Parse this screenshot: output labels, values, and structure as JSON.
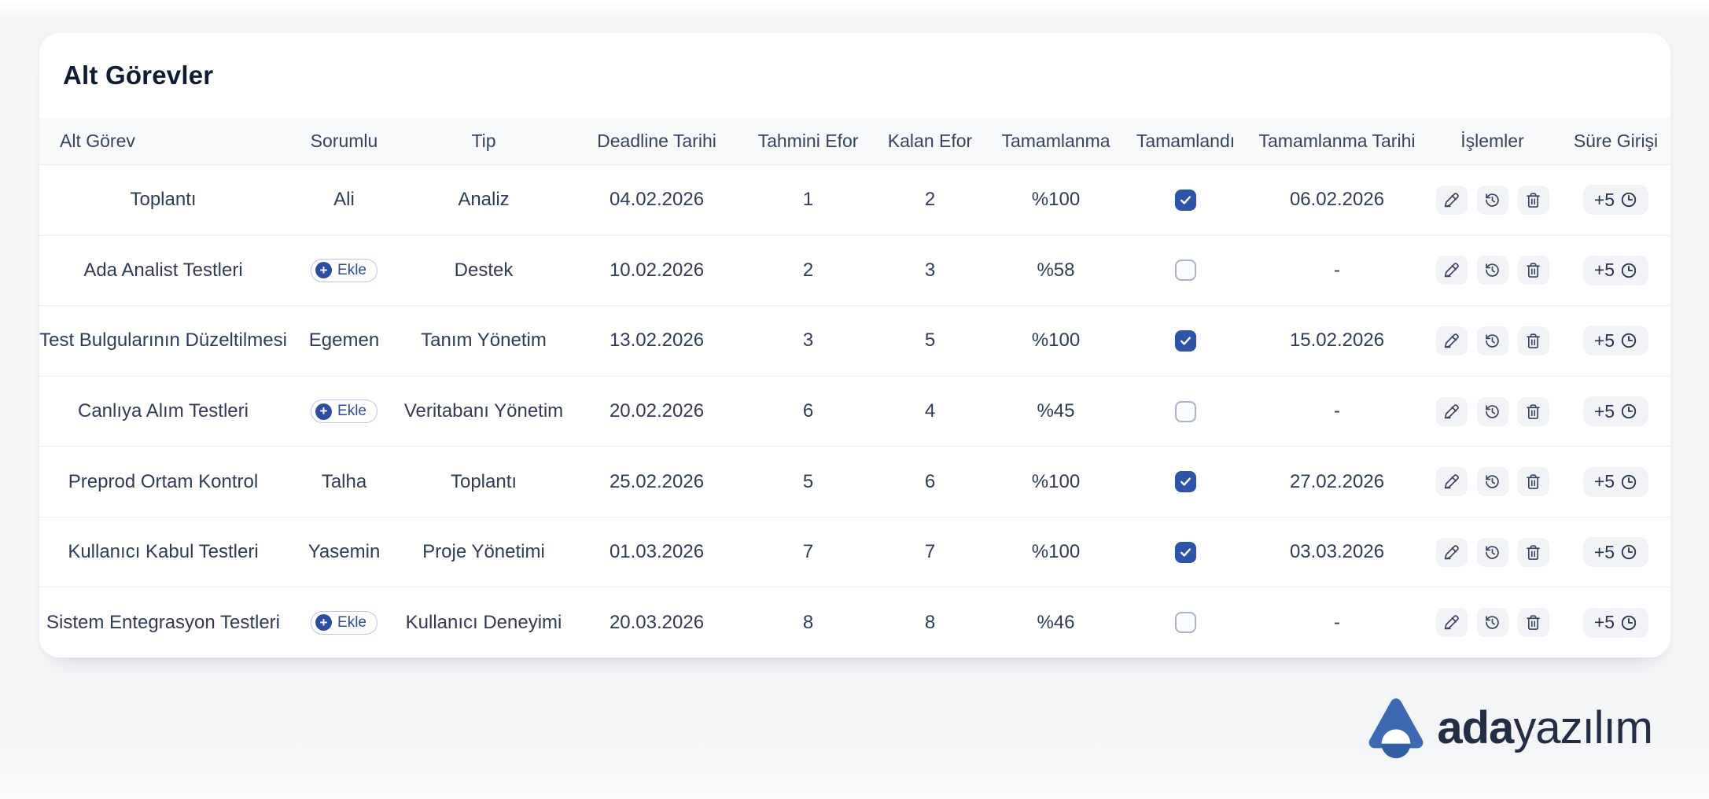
{
  "page": {
    "title": "Alt Görevler"
  },
  "table": {
    "columns": [
      {
        "key": "alt_gorev",
        "label": "Alt Görev"
      },
      {
        "key": "sorumlu",
        "label": "Sorumlu"
      },
      {
        "key": "tip",
        "label": "Tip"
      },
      {
        "key": "deadline",
        "label": "Deadline Tarihi"
      },
      {
        "key": "tahmini",
        "label": "Tahmini Efor"
      },
      {
        "key": "kalan",
        "label": "Kalan Efor"
      },
      {
        "key": "tamamlanma",
        "label": "Tamamlanma"
      },
      {
        "key": "tamamlandi",
        "label": "Tamamlandı"
      },
      {
        "key": "tarih",
        "label": "Tamamlanma Tarihi"
      },
      {
        "key": "islemler",
        "label": "İşlemler"
      },
      {
        "key": "sure",
        "label": "Süre Girişi"
      }
    ],
    "ekle_label": "Ekle",
    "time_entry_label": "+5",
    "rows": [
      {
        "alt_gorev": "Toplantı",
        "sorumlu": "Ali",
        "ekle": false,
        "tip": "Analiz",
        "deadline": "04.02.2026",
        "tahmini": "1",
        "kalan": "2",
        "tamamlanma": "%100",
        "tamamlandi": true,
        "tarih": "06.02.2026"
      },
      {
        "alt_gorev": "Ada Analist Testleri",
        "sorumlu": "",
        "ekle": true,
        "tip": "Destek",
        "deadline": "10.02.2026",
        "tahmini": "2",
        "kalan": "3",
        "tamamlanma": "%58",
        "tamamlandi": false,
        "tarih": "-"
      },
      {
        "alt_gorev": "Test Bulgularının Düzeltilmesi",
        "sorumlu": "Egemen",
        "ekle": false,
        "tip": "Tanım Yönetim",
        "deadline": "13.02.2026",
        "tahmini": "3",
        "kalan": "5",
        "tamamlanma": "%100",
        "tamamlandi": true,
        "tarih": "15.02.2026"
      },
      {
        "alt_gorev": "Canlıya Alım Testleri",
        "sorumlu": "",
        "ekle": true,
        "tip": "Veritabanı Yönetim",
        "deadline": "20.02.2026",
        "tahmini": "6",
        "kalan": "4",
        "tamamlanma": "%45",
        "tamamlandi": false,
        "tarih": "-"
      },
      {
        "alt_gorev": "Preprod Ortam Kontrol",
        "sorumlu": "Talha",
        "ekle": false,
        "tip": "Toplantı",
        "deadline": "25.02.2026",
        "tahmini": "5",
        "kalan": "6",
        "tamamlanma": "%100",
        "tamamlandi": true,
        "tarih": "27.02.2026"
      },
      {
        "alt_gorev": "Kullanıcı Kabul Testleri",
        "sorumlu": "Yasemin",
        "ekle": false,
        "tip": "Proje Yönetimi",
        "deadline": "01.03.2026",
        "tahmini": "7",
        "kalan": "7",
        "tamamlanma": "%100",
        "tamamlandi": true,
        "tarih": "03.03.2026"
      },
      {
        "alt_gorev": "Sistem Entegrasyon Testleri",
        "sorumlu": "",
        "ekle": true,
        "tip": "Kullanıcı Deneyimi",
        "deadline": "20.03.2026",
        "tahmini": "8",
        "kalan": "8",
        "tamamlanma": "%46",
        "tamamlandi": false,
        "tarih": "-"
      }
    ]
  },
  "icons": {
    "edit": "pencil-icon",
    "history": "history-icon",
    "delete": "trash-icon",
    "time": "clock-icon",
    "add": "plus-icon",
    "check": "check-icon"
  },
  "logo": {
    "bold": "ada",
    "light": "yazılım"
  },
  "colors": {
    "accent_blue": "#2d54a7",
    "badge_blue": "#2c4da0",
    "logo_blue": "#3c69b1",
    "logo_blue_dark": "#305ea6",
    "page_bg": "#f4f5f7",
    "card_bg": "#ffffff",
    "header_bg": "#f7f9fb",
    "header_text": "#36435e",
    "cell_text": "#2e3c58",
    "button_bg": "#f1f3f6"
  }
}
